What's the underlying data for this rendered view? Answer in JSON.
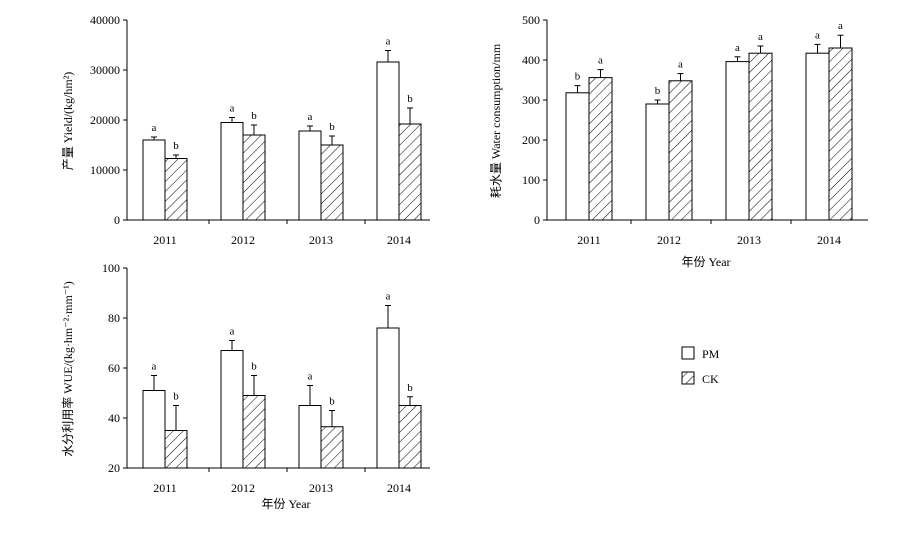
{
  "colors": {
    "PM": "#ffffff",
    "CK": "hatch",
    "stroke": "#000000"
  },
  "legend": {
    "items": [
      {
        "key": "PM",
        "label": "PM"
      },
      {
        "key": "CK",
        "label": "CK"
      }
    ]
  },
  "chart_data": [
    {
      "id": "yield",
      "type": "bar",
      "categories": [
        "2011",
        "2012",
        "2013",
        "2014"
      ],
      "ylabel": "产量 Yield/(kg/hm²)",
      "xlabel": "",
      "ylim": [
        0,
        40000
      ],
      "yticks": [
        "0",
        "10000",
        "20000",
        "30000",
        "40000"
      ],
      "series": [
        {
          "name": "PM",
          "values": [
            16000,
            19500,
            17800,
            31600
          ],
          "err": [
            600,
            1000,
            1000,
            2300
          ],
          "sig": [
            "a",
            "a",
            "a",
            "a"
          ]
        },
        {
          "name": "CK",
          "values": [
            12300,
            17000,
            15000,
            19200
          ],
          "err": [
            700,
            2000,
            1800,
            3200
          ],
          "sig": [
            "b",
            "b",
            "b",
            "b"
          ]
        }
      ]
    },
    {
      "id": "water",
      "type": "bar",
      "categories": [
        "2011",
        "2012",
        "2013",
        "2014"
      ],
      "ylabel": "耗水量 Water consumption/mm",
      "xlabel": "年份 Year",
      "ylim": [
        0,
        500
      ],
      "yticks": [
        "0",
        "100",
        "200",
        "300",
        "400",
        "500"
      ],
      "series": [
        {
          "name": "PM",
          "values": [
            318,
            290,
            396,
            417
          ],
          "err": [
            18,
            10,
            12,
            22
          ],
          "sig": [
            "b",
            "b",
            "a",
            "a"
          ]
        },
        {
          "name": "CK",
          "values": [
            356,
            348,
            417,
            430
          ],
          "err": [
            20,
            18,
            18,
            32
          ],
          "sig": [
            "a",
            "a",
            "a",
            "a"
          ]
        }
      ]
    },
    {
      "id": "wue",
      "type": "bar",
      "categories": [
        "2011",
        "2012",
        "2013",
        "2014"
      ],
      "ylabel": "水分利用率 WUE/(kg·hm⁻²·mm⁻¹)",
      "xlabel": "年份 Year",
      "ylim": [
        20,
        100
      ],
      "yticks": [
        "20",
        "40",
        "60",
        "80",
        "100"
      ],
      "series": [
        {
          "name": "PM",
          "values": [
            51,
            67,
            45,
            76
          ],
          "err": [
            6,
            4,
            8,
            9
          ],
          "sig": [
            "a",
            "a",
            "a",
            "a"
          ]
        },
        {
          "name": "CK",
          "values": [
            35,
            49,
            36.5,
            45
          ],
          "err": [
            10,
            8,
            6.5,
            3.5
          ],
          "sig": [
            "b",
            "b",
            "b",
            "b"
          ]
        }
      ]
    }
  ]
}
